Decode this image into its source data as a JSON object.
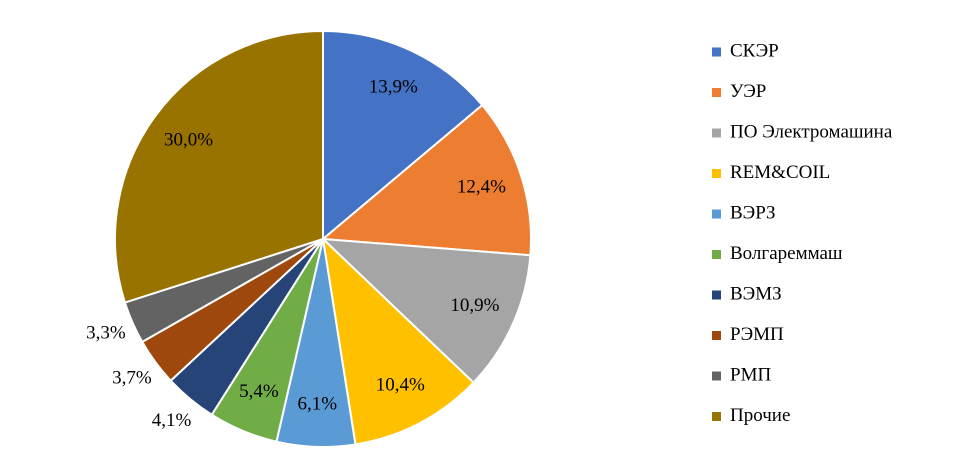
{
  "chart_data": {
    "type": "pie",
    "categories": [
      "СКЭР",
      "УЭР",
      "ПО Электромашина",
      "REM&COIL",
      "ВЭРЗ",
      "Волгареммаш",
      "ВЭМЗ",
      "РЭМП",
      "РМП",
      "Прочие"
    ],
    "values": [
      13.9,
      12.4,
      10.9,
      10.4,
      6.1,
      5.4,
      4.1,
      3.7,
      3.3,
      30.0
    ],
    "value_labels": [
      "13,9%",
      "12,4%",
      "10,9%",
      "10,4%",
      "6,1%",
      "5,4%",
      "4,1%",
      "3,7%",
      "3,3%",
      "30,0%"
    ],
    "colors": [
      "#4472c4",
      "#ed7d31",
      "#a5a5a5",
      "#ffc000",
      "#5b9bd5",
      "#70ad47",
      "#264478",
      "#9e480e",
      "#636363",
      "#997300"
    ],
    "legend": "right"
  }
}
